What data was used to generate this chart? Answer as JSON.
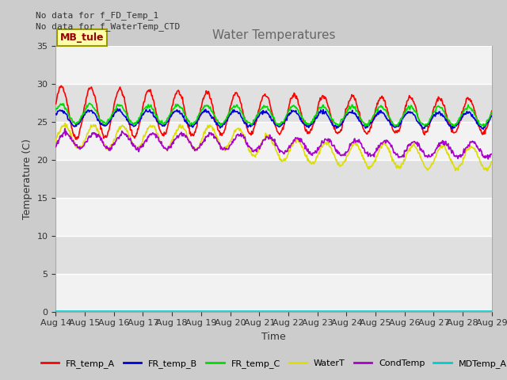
{
  "title": "Water Temperatures",
  "ylabel": "Temperature (C)",
  "xlabel": "Time",
  "annotation1": "No data for f_FD_Temp_1",
  "annotation2": "No data for f_WaterTemp_CTD",
  "mb_label": "MB_tule",
  "ylim": [
    0,
    35
  ],
  "yticks": [
    0,
    5,
    10,
    15,
    20,
    25,
    30,
    35
  ],
  "x_labels": [
    "Aug 14",
    "Aug 15",
    "Aug 16",
    "Aug 17",
    "Aug 18",
    "Aug 19",
    "Aug 20",
    "Aug 21",
    "Aug 22",
    "Aug 23",
    "Aug 24",
    "Aug 25",
    "Aug 26",
    "Aug 27",
    "Aug 28",
    "Aug 29"
  ],
  "legend_entries": [
    "FR_temp_A",
    "FR_temp_B",
    "FR_temp_C",
    "WaterT",
    "CondTemp",
    "MDTemp_A"
  ],
  "legend_colors": [
    "#ff0000",
    "#0000dd",
    "#00dd00",
    "#dddd00",
    "#aa00cc",
    "#00cccc"
  ]
}
